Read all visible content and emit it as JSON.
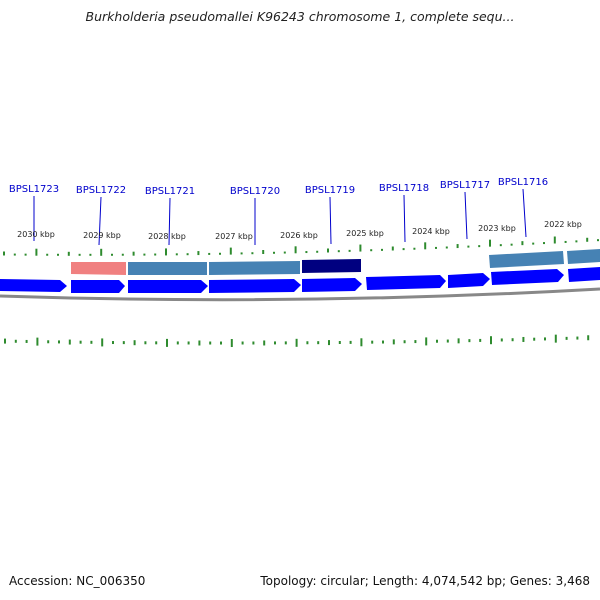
{
  "title": "Burkholderia pseudomallei K96243 chromosome 1, complete sequ...",
  "footer": {
    "accession": "Accession: NC_006350",
    "summary": "Topology: circular; Length: 4,074,542 bp; Genes: 3,468"
  },
  "colors": {
    "background": "#ffffff",
    "gene_label": "#0000cc",
    "cds_arrow": "#0000ff",
    "tick": "#2e8b2e",
    "backbone": "#888888",
    "feature_pink": "#f08080",
    "feature_steelblue": "#4682b4",
    "feature_navy": "#000080"
  },
  "kbp_labels": [
    "2030 kbp",
    "2029 kbp",
    "2028 kbp",
    "2027 kbp",
    "2026 kbp",
    "2025 kbp",
    "2024 kbp",
    "2023 kbp",
    "2022 kbp"
  ],
  "genes": [
    {
      "label": "BPSL1723"
    },
    {
      "label": "BPSL1722"
    },
    {
      "label": "BPSL1721"
    },
    {
      "label": "BPSL1720"
    },
    {
      "label": "BPSL1719"
    },
    {
      "label": "BPSL1718"
    },
    {
      "label": "BPSL1717"
    },
    {
      "label": "BPSL1716"
    }
  ]
}
